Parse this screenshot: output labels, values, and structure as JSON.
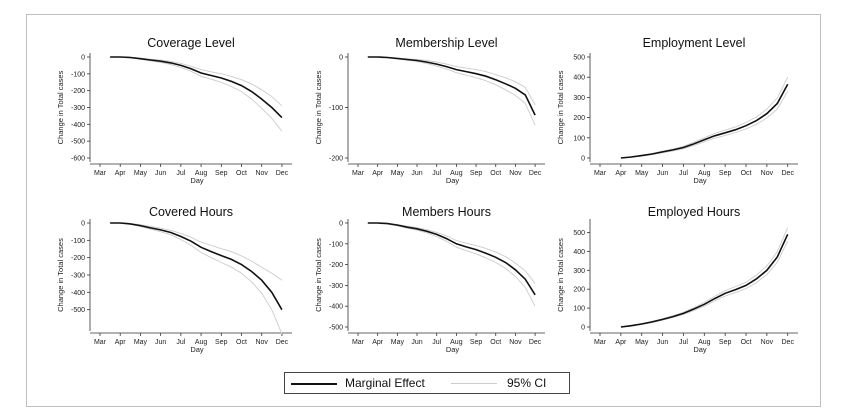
{
  "legend": {
    "marginal_effect_label": "Marginal Effect",
    "ci_label": "95% CI"
  },
  "colors": {
    "effect": "#111111",
    "ci": "#cccccc",
    "axis": "#333333"
  },
  "chart_data": [
    {
      "type": "line",
      "title": "Coverage Level",
      "xlabel": "Day",
      "ylabel": "Change in Total cases",
      "x_tick_labels": [
        "Mar",
        "Apr",
        "May",
        "Jun",
        "Jul",
        "Aug",
        "Sep",
        "Oct",
        "Nov",
        "Dec"
      ],
      "ylim": [
        -600,
        0
      ],
      "y_ticks": [
        0,
        -100,
        -200,
        -300,
        -400,
        -500,
        -600
      ],
      "x": [
        3.5,
        4,
        4.5,
        5,
        5.5,
        6,
        6.5,
        7,
        7.5,
        8,
        8.5,
        9,
        9.5,
        10,
        10.5,
        11,
        11.5,
        12
      ],
      "series": [
        {
          "name": "Marginal Effect",
          "values": [
            0,
            0,
            -3,
            -10,
            -18,
            -25,
            -35,
            -50,
            -70,
            -95,
            -110,
            -125,
            -145,
            -170,
            -205,
            -250,
            -300,
            -360
          ]
        },
        {
          "name": "95% CI",
          "values": [
            0,
            0,
            -2,
            -7,
            -13,
            -18,
            -26,
            -38,
            -55,
            -75,
            -88,
            -100,
            -115,
            -135,
            -160,
            -195,
            -235,
            -290
          ]
        },
        {
          "name": "95% CI",
          "values": [
            0,
            0,
            -5,
            -13,
            -23,
            -32,
            -45,
            -62,
            -85,
            -115,
            -132,
            -150,
            -175,
            -205,
            -250,
            -305,
            -365,
            -440
          ]
        }
      ]
    },
    {
      "type": "line",
      "title": "Membership Level",
      "xlabel": "Day",
      "ylabel": "Change in Total cases",
      "x_tick_labels": [
        "Mar",
        "Apr",
        "May",
        "Jun",
        "Jul",
        "Aug",
        "Sep",
        "Oct",
        "Nov",
        "Dec"
      ],
      "ylim": [
        -200,
        0
      ],
      "y_ticks": [
        0,
        -100,
        -200
      ],
      "x": [
        3.5,
        4,
        4.5,
        5,
        5.5,
        6,
        6.5,
        7,
        7.5,
        8,
        8.5,
        9,
        9.5,
        10,
        10.5,
        11,
        11.5,
        12
      ],
      "series": [
        {
          "name": "Marginal Effect",
          "values": [
            0,
            0,
            -1,
            -3,
            -5,
            -7,
            -10,
            -14,
            -19,
            -25,
            -29,
            -33,
            -38,
            -45,
            -53,
            -62,
            -75,
            -115
          ]
        },
        {
          "name": "95% CI",
          "values": [
            0,
            0,
            -0.5,
            -2,
            -3.5,
            -5,
            -7,
            -10,
            -14,
            -19,
            -22,
            -25,
            -29,
            -35,
            -41,
            -49,
            -60,
            -95
          ]
        },
        {
          "name": "95% CI",
          "values": [
            0,
            0,
            -1.5,
            -4,
            -6.5,
            -9,
            -13,
            -18,
            -24,
            -31,
            -36,
            -41,
            -47,
            -55,
            -65,
            -76,
            -92,
            -135
          ]
        }
      ]
    },
    {
      "type": "line",
      "title": "Employment Level",
      "xlabel": "Day",
      "ylabel": "Change in Total cases",
      "x_tick_labels": [
        "Mar",
        "Apr",
        "May",
        "Jun",
        "Jul",
        "Aug",
        "Sep",
        "Oct",
        "Nov",
        "Dec"
      ],
      "ylim": [
        0,
        500
      ],
      "y_ticks": [
        0,
        100,
        200,
        300,
        400,
        500
      ],
      "x": [
        4,
        4.5,
        5,
        5.5,
        6,
        6.5,
        7,
        7.5,
        8,
        8.5,
        9,
        9.5,
        10,
        10.5,
        11,
        11.5,
        12
      ],
      "series": [
        {
          "name": "Marginal Effect",
          "values": [
            0,
            5,
            12,
            20,
            30,
            40,
            52,
            70,
            90,
            110,
            125,
            140,
            160,
            185,
            220,
            270,
            365
          ]
        },
        {
          "name": "95% CI",
          "values": [
            0,
            4,
            10,
            17,
            26,
            35,
            46,
            62,
            80,
            98,
            112,
            126,
            144,
            167,
            198,
            243,
            330
          ]
        },
        {
          "name": "95% CI",
          "values": [
            0,
            6,
            14,
            23,
            34,
            45,
            58,
            78,
            100,
            122,
            138,
            154,
            176,
            203,
            242,
            297,
            400
          ]
        }
      ]
    },
    {
      "type": "line",
      "title": "Covered Hours",
      "xlabel": "Day",
      "ylabel": "Change in Total cases",
      "x_tick_labels": [
        "Mar",
        "Apr",
        "May",
        "Jun",
        "Jul",
        "Aug",
        "Sep",
        "Oct",
        "Nov",
        "Dec"
      ],
      "ylim": [
        -600,
        0
      ],
      "y_ticks": [
        0,
        -100,
        -200,
        -300,
        -400,
        -500
      ],
      "x": [
        3.5,
        4,
        4.5,
        5,
        5.5,
        6,
        6.5,
        7,
        7.5,
        8,
        8.5,
        9,
        9.5,
        10,
        10.5,
        11,
        11.5,
        12
      ],
      "series": [
        {
          "name": "Marginal Effect",
          "values": [
            0,
            0,
            -5,
            -15,
            -28,
            -40,
            -55,
            -78,
            -105,
            -140,
            -165,
            -188,
            -210,
            -240,
            -280,
            -330,
            -400,
            -500
          ]
        },
        {
          "name": "95% CI",
          "values": [
            0,
            0,
            -3,
            -10,
            -20,
            -30,
            -42,
            -60,
            -82,
            -110,
            -130,
            -148,
            -165,
            -190,
            -220,
            -255,
            -290,
            -330
          ]
        },
        {
          "name": "95% CI",
          "values": [
            0,
            0,
            -7,
            -20,
            -36,
            -50,
            -68,
            -96,
            -128,
            -170,
            -200,
            -228,
            -255,
            -290,
            -340,
            -405,
            -500,
            -640
          ]
        }
      ]
    },
    {
      "type": "line",
      "title": "Members Hours",
      "xlabel": "Day",
      "ylabel": "Change in Total cases",
      "x_tick_labels": [
        "Mar",
        "Apr",
        "May",
        "Jun",
        "Jul",
        "Aug",
        "Sep",
        "Oct",
        "Nov",
        "Dec"
      ],
      "ylim": [
        -500,
        0
      ],
      "y_ticks": [
        0,
        -100,
        -200,
        -300,
        -400,
        -500
      ],
      "x": [
        3.5,
        4,
        4.5,
        5,
        5.5,
        6,
        6.5,
        7,
        7.5,
        8,
        8.5,
        9,
        9.5,
        10,
        10.5,
        11,
        11.5,
        12
      ],
      "series": [
        {
          "name": "Marginal Effect",
          "values": [
            0,
            0,
            -3,
            -10,
            -20,
            -28,
            -40,
            -55,
            -75,
            -100,
            -115,
            -128,
            -145,
            -165,
            -190,
            -225,
            -270,
            -345
          ]
        },
        {
          "name": "95% CI",
          "values": [
            0,
            0,
            -2,
            -7,
            -15,
            -22,
            -32,
            -45,
            -62,
            -84,
            -97,
            -108,
            -122,
            -140,
            -162,
            -193,
            -230,
            -290
          ]
        },
        {
          "name": "95% CI",
          "values": [
            0,
            0,
            -4,
            -13,
            -25,
            -34,
            -48,
            -65,
            -88,
            -116,
            -133,
            -148,
            -168,
            -190,
            -218,
            -257,
            -310,
            -400
          ]
        }
      ]
    },
    {
      "type": "line",
      "title": "Employed Hours",
      "xlabel": "Day",
      "ylabel": "Change in Total cases",
      "x_tick_labels": [
        "Mar",
        "Apr",
        "May",
        "Jun",
        "Jul",
        "Aug",
        "Sep",
        "Oct",
        "Nov",
        "Dec"
      ],
      "ylim": [
        0,
        550
      ],
      "y_ticks": [
        0,
        100,
        200,
        300,
        400,
        500
      ],
      "x": [
        4,
        4.5,
        5,
        5.5,
        6,
        6.5,
        7,
        7.5,
        8,
        8.5,
        9,
        9.5,
        10,
        10.5,
        11,
        11.5,
        12
      ],
      "series": [
        {
          "name": "Marginal Effect",
          "values": [
            0,
            7,
            16,
            27,
            40,
            55,
            72,
            95,
            120,
            150,
            178,
            198,
            220,
            255,
            300,
            370,
            490
          ]
        },
        {
          "name": "95% CI",
          "values": [
            0,
            6,
            14,
            24,
            36,
            50,
            66,
            87,
            110,
            138,
            164,
            182,
            203,
            235,
            277,
            342,
            455
          ]
        },
        {
          "name": "95% CI",
          "values": [
            0,
            8,
            18,
            30,
            44,
            60,
            78,
            103,
            130,
            162,
            192,
            214,
            237,
            275,
            323,
            398,
            525
          ]
        }
      ]
    }
  ]
}
